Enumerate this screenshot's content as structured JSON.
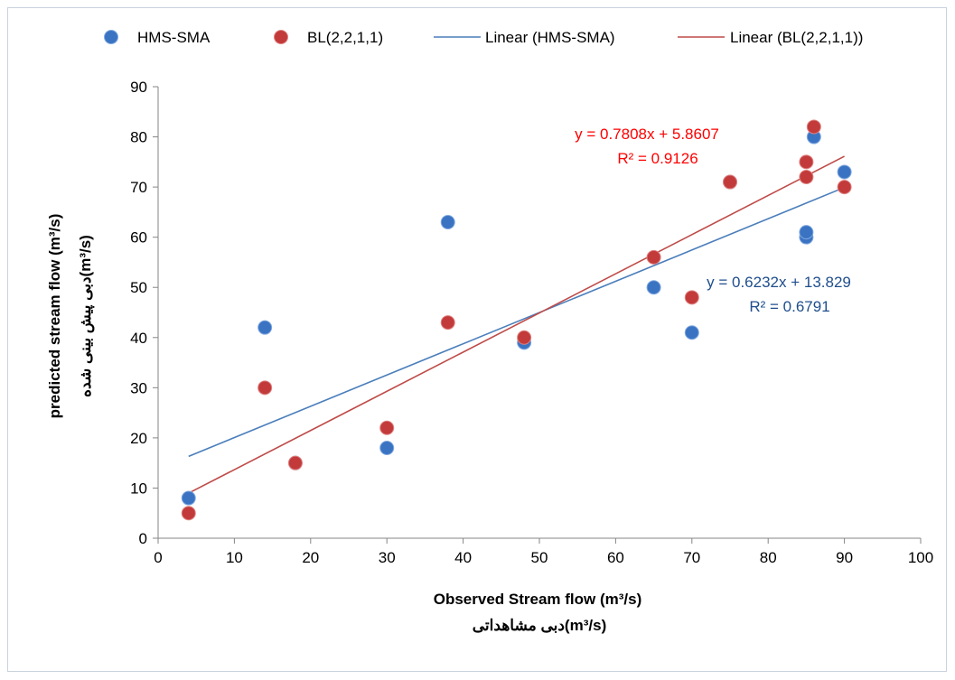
{
  "chart_data": {
    "type": "scatter",
    "title": "",
    "xlabel": "Observed Stream flow (m³/s)",
    "xlabel2": "(m³/s)دبی مشاهداتی",
    "ylabel": "predicted stream flow (m³/s)",
    "ylabel2": "(m³/s)دبی پیش بینی شده",
    "xlim": [
      0,
      100
    ],
    "ylim": [
      0,
      90
    ],
    "xticks": [
      "0",
      "10",
      "20",
      "30",
      "40",
      "50",
      "60",
      "70",
      "80",
      "90",
      "100"
    ],
    "yticks": [
      "0",
      "10",
      "20",
      "30",
      "40",
      "50",
      "60",
      "70",
      "80",
      "90"
    ],
    "grid": false,
    "legend_position": "top",
    "series": [
      {
        "name": "HMS-SMA",
        "color": "#3a73c2",
        "points": [
          [
            4,
            8
          ],
          [
            14,
            42
          ],
          [
            18,
            15
          ],
          [
            30,
            18
          ],
          [
            38,
            63
          ],
          [
            48,
            39
          ],
          [
            65,
            50
          ],
          [
            70,
            41
          ],
          [
            75,
            71
          ],
          [
            85,
            60
          ],
          [
            85,
            61
          ],
          [
            86,
            80
          ],
          [
            90,
            73
          ]
        ]
      },
      {
        "name": "BL(2,2,1,1)",
        "color": "#c23a3a",
        "points": [
          [
            4,
            5
          ],
          [
            14,
            30
          ],
          [
            18,
            15
          ],
          [
            30,
            22
          ],
          [
            38,
            43
          ],
          [
            48,
            40
          ],
          [
            65,
            56
          ],
          [
            70,
            48
          ],
          [
            75,
            71
          ],
          [
            85,
            72
          ],
          [
            85,
            75
          ],
          [
            86,
            82
          ],
          [
            90,
            70
          ]
        ]
      }
    ],
    "trendlines": [
      {
        "name": "Linear (HMS-SMA)",
        "color": "#4a7ebb",
        "slope": 0.6232,
        "intercept": 13.829,
        "x_range": [
          4,
          90
        ],
        "equation": "y = 0.6232x + 13.829",
        "r2": "R² = 0.6791",
        "label_color": "#1f4e8c"
      },
      {
        "name": "Linear (BL(2,2,1,1))",
        "color": "#be4b48",
        "slope": 0.7808,
        "intercept": 5.8607,
        "x_range": [
          4,
          90
        ],
        "equation": "y = 0.7808x + 5.8607",
        "r2": "R² = 0.9126",
        "label_color": "#ff0000"
      }
    ]
  }
}
